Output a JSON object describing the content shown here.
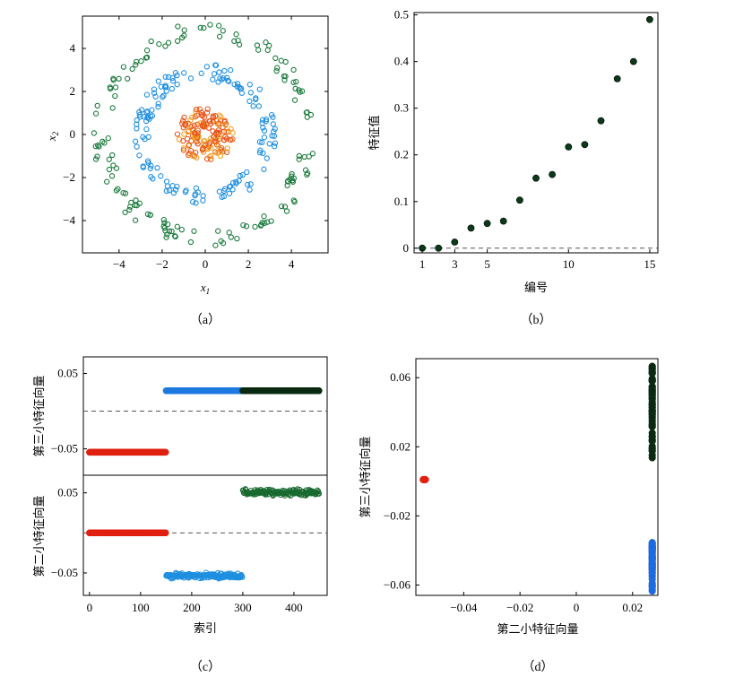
{
  "chart_data": [
    {
      "panel": "a",
      "type": "scatter",
      "caption": "（a）",
      "xlabel": "x",
      "xlabel_sub": "1",
      "ylabel": "x",
      "ylabel_sub": "2",
      "xlim": [
        -5.7,
        5.7
      ],
      "ylim": [
        -5.5,
        5.5
      ],
      "xticks": [
        -4,
        -2,
        0,
        2,
        4
      ],
      "yticks": [
        -4,
        -2,
        0,
        2,
        4
      ],
      "marker": "circle-open",
      "series": [
        {
          "color": "#1a7a3c",
          "radius_range": [
            4.4,
            5.2
          ],
          "count": 150
        },
        {
          "color": "#1e8fe0",
          "radius_range": [
            2.5,
            3.3
          ],
          "count": 150
        },
        {
          "color": "#e8541a",
          "secondary_color": "#f0a020",
          "radius_range": [
            0.3,
            1.3
          ],
          "count": 150
        }
      ]
    },
    {
      "panel": "b",
      "type": "scatter",
      "caption": "（b）",
      "xlabel": "编号",
      "ylabel": "特征值",
      "xlim": [
        0.5,
        15.5
      ],
      "ylim": [
        -0.01,
        0.505
      ],
      "xticks": [
        1,
        3,
        5,
        10,
        15
      ],
      "yticks": [
        0,
        0.1,
        0.2,
        0.3,
        0.4,
        0.5
      ],
      "ytick_labels": [
        "0",
        "0.1",
        "0.2",
        "0.3",
        "0.4",
        "0.5"
      ],
      "reference_line_y": 0,
      "x": [
        1,
        2,
        3,
        4,
        5,
        6,
        7,
        8,
        9,
        10,
        11,
        12,
        13,
        14,
        15
      ],
      "y": [
        0,
        0,
        0.013,
        0.043,
        0.053,
        0.058,
        0.103,
        0.15,
        0.158,
        0.217,
        0.222,
        0.273,
        0.363,
        0.4,
        0.49
      ],
      "color": "#0a3a1a"
    },
    {
      "panel": "c-top",
      "type": "scatter",
      "ylabel": "第三小特征向量",
      "xlim": [
        -12,
        465
      ],
      "ylim": [
        -0.085,
        0.072
      ],
      "yticks": [
        0.05,
        -0.05
      ],
      "ytick_labels": [
        "0.05",
        "−0.05"
      ],
      "reference_line_y": 0,
      "series": [
        {
          "color": "#e02010",
          "index_range": [
            0,
            150
          ],
          "value": -0.0545
        },
        {
          "color": "#1e7ae0",
          "index_range": [
            150,
            300
          ],
          "value": 0.027
        },
        {
          "color": "#0a2a10",
          "index_range": [
            300,
            450
          ],
          "value": 0.027
        }
      ]
    },
    {
      "panel": "c-bottom",
      "type": "scatter",
      "caption": "（c）",
      "xlabel": "索引",
      "ylabel": "第二小特征向量",
      "xlim": [
        -12,
        465
      ],
      "ylim": [
        -0.078,
        0.072
      ],
      "xticks": [
        0,
        100,
        200,
        300,
        400
      ],
      "yticks": [
        0.05,
        -0.05
      ],
      "ytick_labels": [
        "0.05",
        "−0.05"
      ],
      "reference_line_y": 0,
      "series": [
        {
          "color": "#e02010",
          "index_range": [
            0,
            150
          ],
          "value": 0,
          "spread": 0
        },
        {
          "color": "#1e8fe0",
          "index_range": [
            150,
            300
          ],
          "value": -0.0535,
          "spread": 0.0045
        },
        {
          "color": "#1a6a30",
          "index_range": [
            300,
            450
          ],
          "value": 0.0505,
          "spread": 0.0055
        }
      ]
    },
    {
      "panel": "d",
      "type": "scatter",
      "caption": "（d）",
      "xlabel": "第二小特征向量",
      "ylabel": "第三小特征向量",
      "xlim": [
        -0.057,
        0.029
      ],
      "ylim": [
        -0.066,
        0.071
      ],
      "xticks": [
        -0.04,
        -0.02,
        0,
        0.02
      ],
      "xtick_labels": [
        "−0.04",
        "−0.02",
        "0",
        "0.02"
      ],
      "yticks": [
        0.06,
        0.02,
        -0.02,
        -0.06
      ],
      "ytick_labels": [
        "0.06",
        "0.02",
        "−0.02",
        "−0.06"
      ],
      "series": [
        {
          "color": "#e02010",
          "x": -0.054,
          "y": 0.001
        },
        {
          "color": "#0a2a10",
          "x": 0.027,
          "y_range": [
            0.013,
            0.067
          ]
        },
        {
          "color": "#1e6ae0",
          "x": 0.027,
          "y_range": [
            -0.064,
            -0.035
          ]
        }
      ]
    }
  ]
}
